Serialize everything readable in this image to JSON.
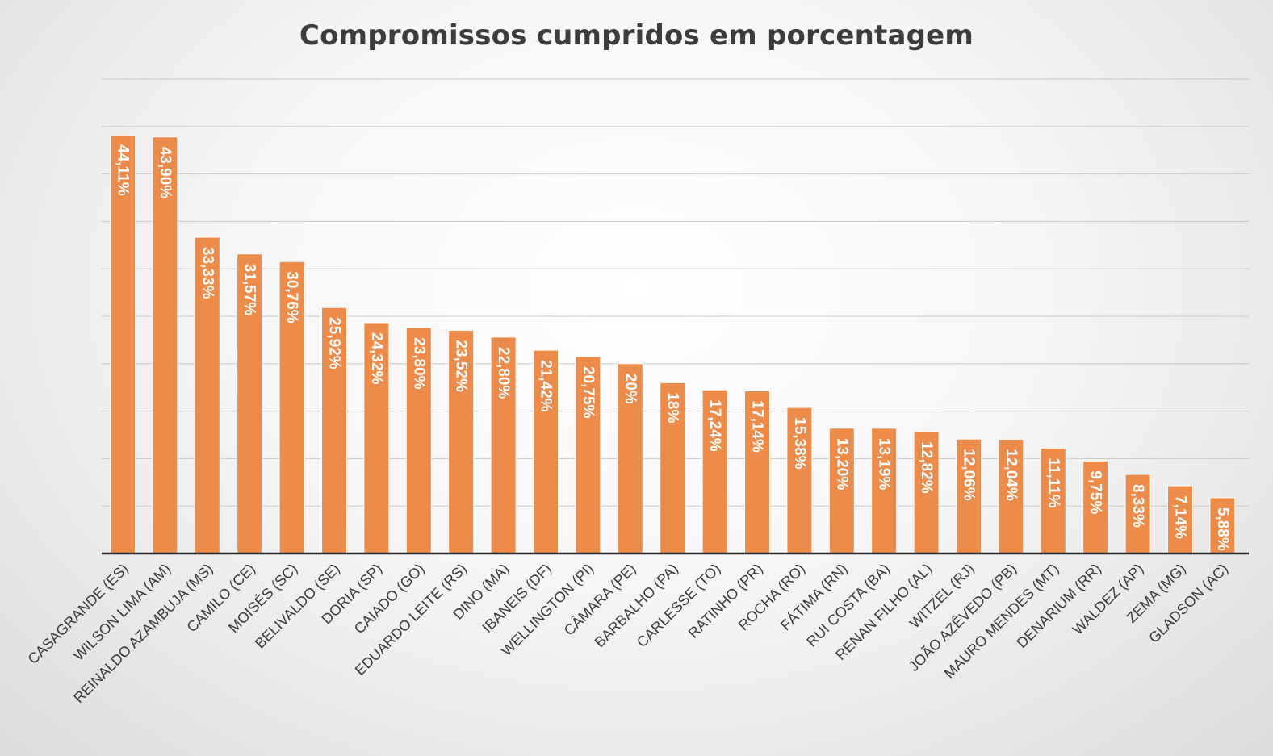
{
  "chart_data": {
    "type": "bar",
    "title": "Compromissos cumpridos em porcentagem",
    "xlabel": "",
    "ylabel": "",
    "ylim": [
      0,
      50
    ],
    "grid": true,
    "legend": "none",
    "bar_color": "#ED8B4B",
    "categories": [
      "CASAGRANDE (ES)",
      "WILSON LIMA (AM)",
      "REINALDO AZAMBUJA (MS)",
      "CAMILO (CE)",
      "MOISÉS (SC)",
      "BELIVALDO (SE)",
      "DORIA (SP)",
      "CAIADO (GO)",
      "EDUARDO LEITE (RS)",
      "DINO (MA)",
      "IBANEIS (DF)",
      "WELLINGTON (PI)",
      "CÂMARA (PE)",
      "BARBALHO (PA)",
      "CARLESSE (TO)",
      "RATINHO (PR)",
      "ROCHA (RO)",
      "FÁTIMA (RN)",
      "RUI COSTA (BA)",
      "RENAN FILHO (AL)",
      "WITZEL (RJ)",
      "JOÃO AZÊVEDO (PB)",
      "MAURO MENDES (MT)",
      "DENARIUM (RR)",
      "WALDEZ (AP)",
      "ZEMA (MG)",
      "GLADSON (AC)"
    ],
    "values": [
      44.11,
      43.9,
      33.33,
      31.57,
      30.76,
      25.92,
      24.32,
      23.8,
      23.52,
      22.8,
      21.42,
      20.75,
      20,
      18,
      17.24,
      17.14,
      15.38,
      13.2,
      13.19,
      12.82,
      12.06,
      12.04,
      11.11,
      9.75,
      8.33,
      7.14,
      5.88
    ],
    "data_labels": [
      "44,11%",
      "43,90%",
      "33,33%",
      "31,57%",
      "30,76%",
      "25,92%",
      "24,32%",
      "23,80%",
      "23,52%",
      "22,80%",
      "21,42%",
      "20,75%",
      "20%",
      "18%",
      "17,24%",
      "17,14%",
      "15,38%",
      "13,20%",
      "13,19%",
      "12,82%",
      "12,06%",
      "12,04%",
      "11,11%",
      "9,75%",
      "8,33%",
      "7,14%",
      "5,88%"
    ]
  }
}
